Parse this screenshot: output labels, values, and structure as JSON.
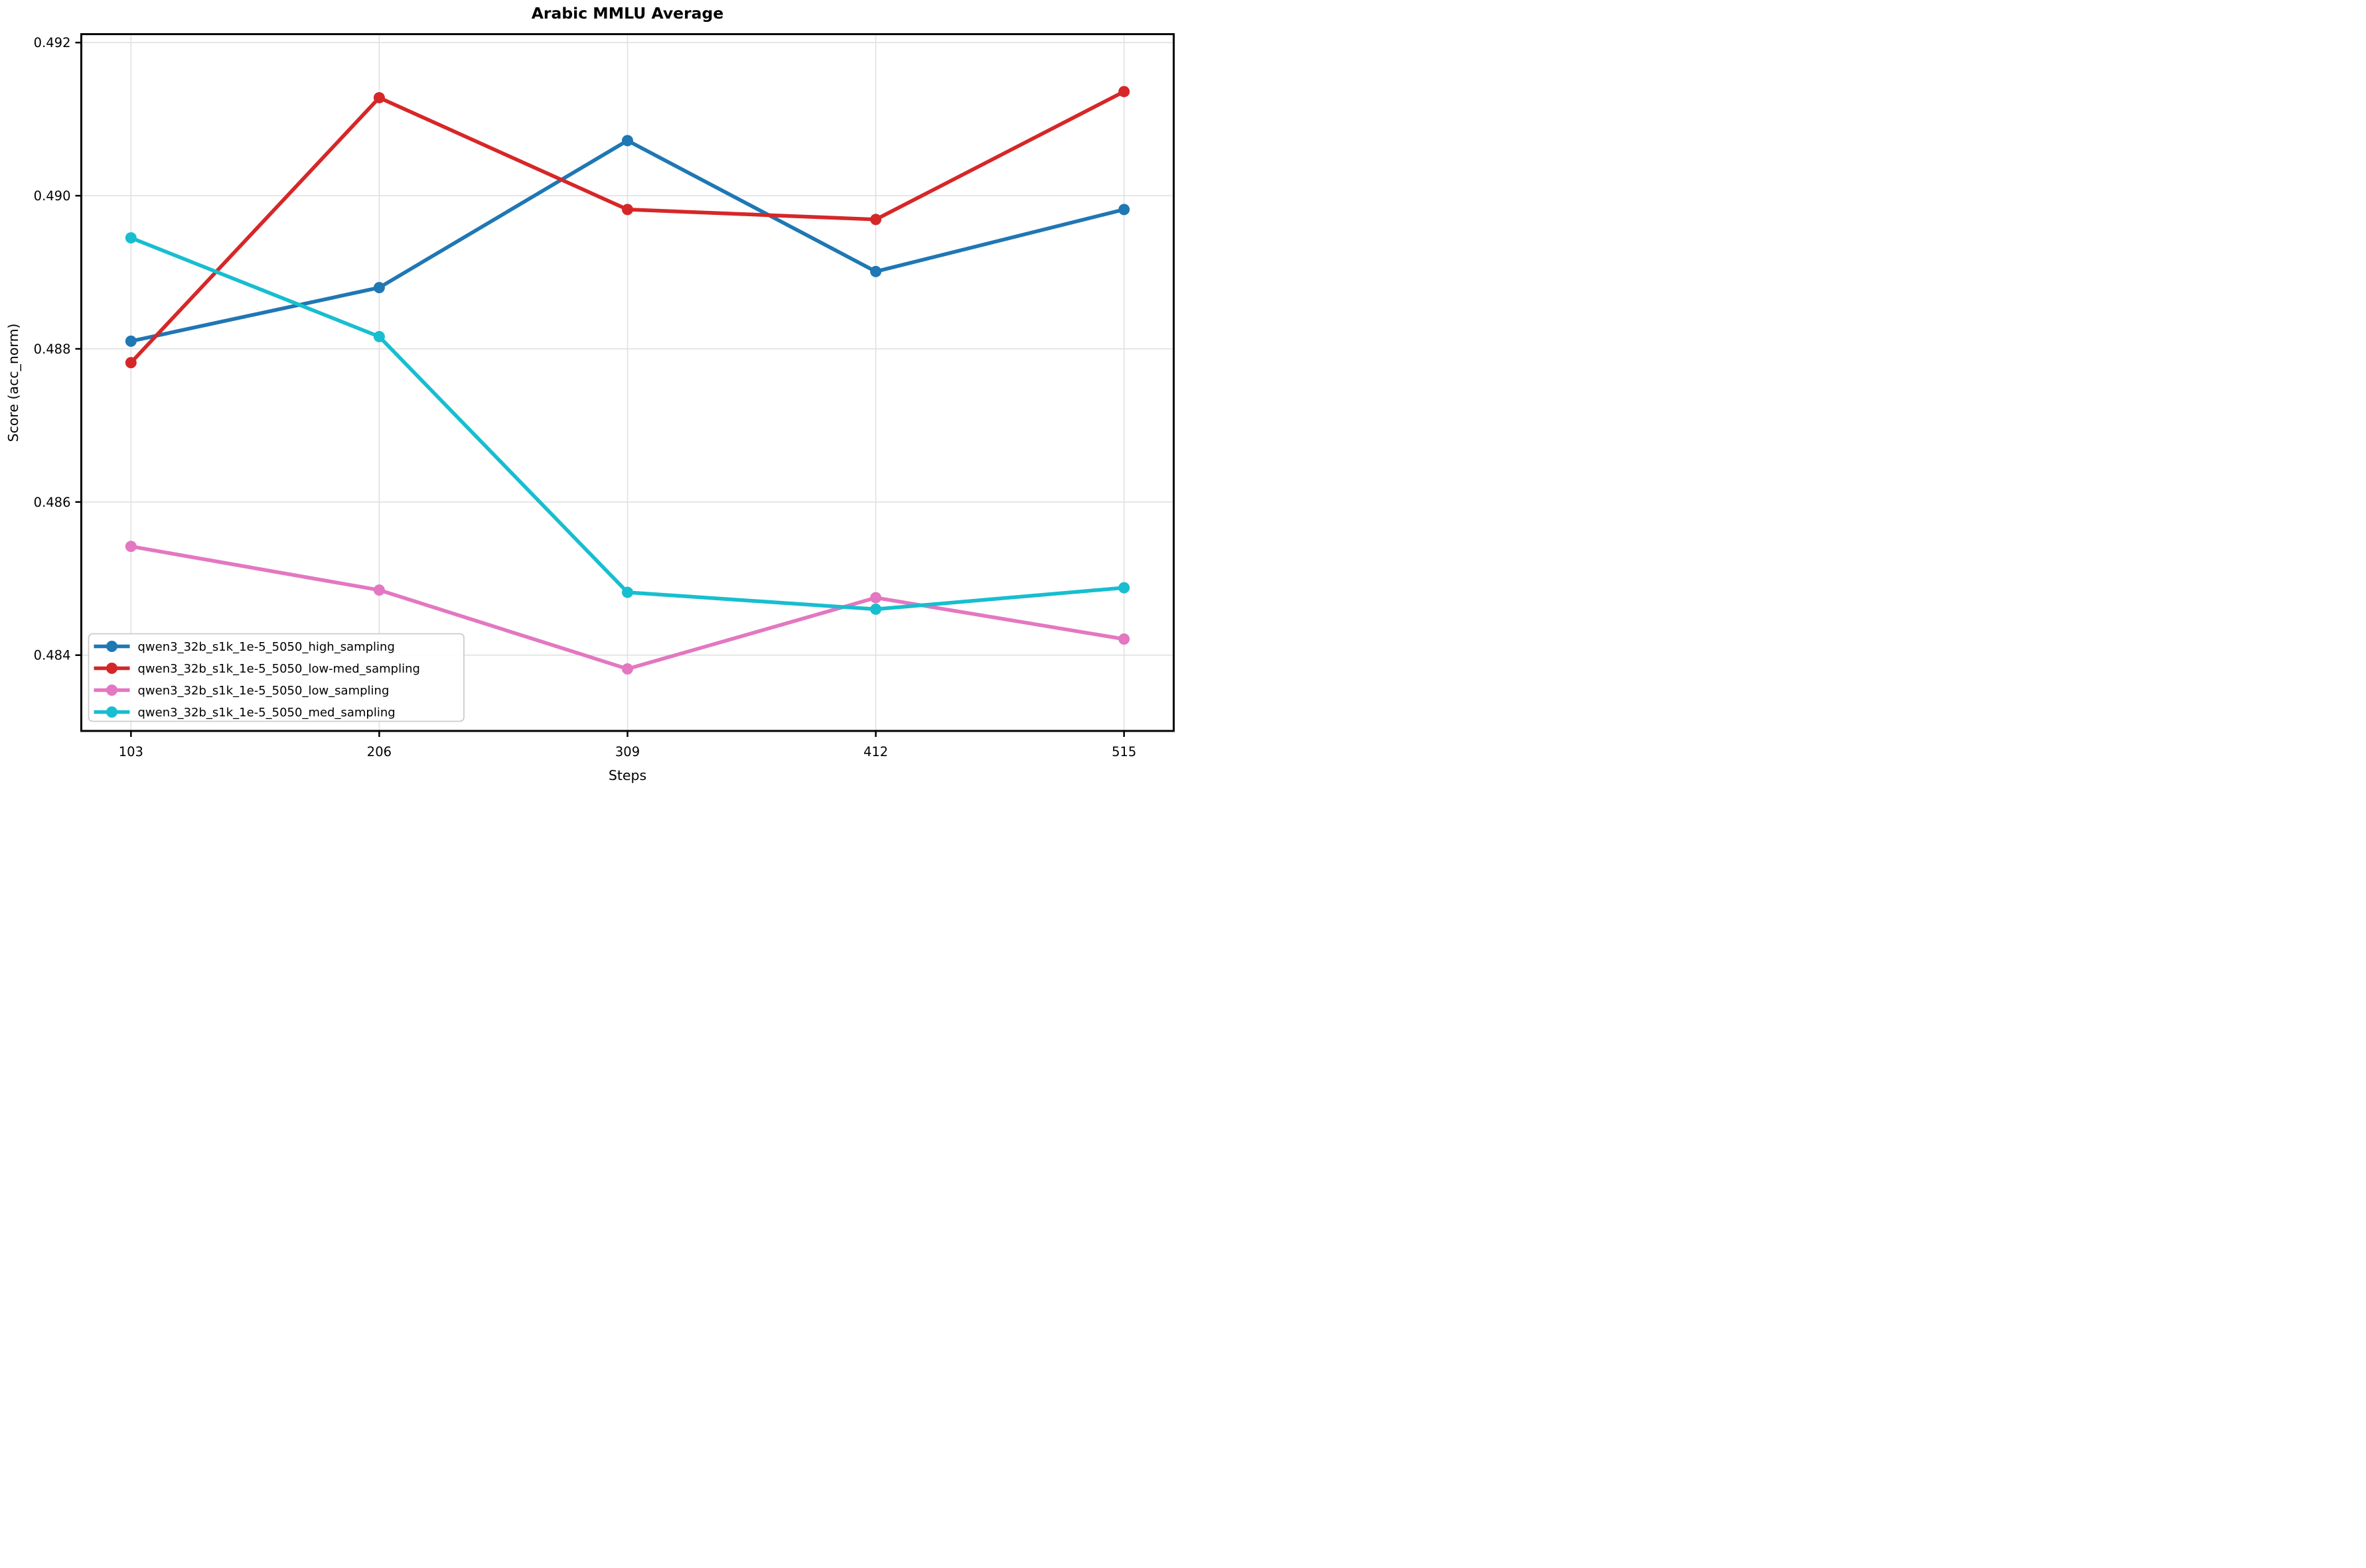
{
  "chart_data": {
    "type": "line",
    "title": "Arabic MMLU Average",
    "xlabel": "Steps",
    "ylabel": "Score (acc_norm)",
    "x": [
      103,
      206,
      309,
      412,
      515
    ],
    "x_tick_labels": [
      "103",
      "206",
      "309",
      "412",
      "515"
    ],
    "y_ticks": [
      0.484,
      0.486,
      0.488,
      0.49,
      0.492
    ],
    "y_tick_labels": [
      "0.484",
      "0.486",
      "0.488",
      "0.490",
      "0.492"
    ],
    "xlim": [
      82.4,
      535.6
    ],
    "ylim": [
      0.48301,
      0.49211
    ],
    "grid": true,
    "legend_position": "lower left",
    "series": [
      {
        "name": "qwen3_32b_s1k_1e-5_5050_high_sampling",
        "color": "#1f77b4",
        "marker": "circle",
        "values": [
          0.4881,
          0.4888,
          0.49072,
          0.48901,
          0.48982
        ]
      },
      {
        "name": "qwen3_32b_s1k_1e-5_5050_low-med_sampling",
        "color": "#d62728",
        "marker": "circle",
        "values": [
          0.48782,
          0.49128,
          0.48982,
          0.48969,
          0.49136
        ]
      },
      {
        "name": "qwen3_32b_s1k_1e-5_5050_low_sampling",
        "color": "#e377c2",
        "marker": "circle",
        "values": [
          0.48542,
          0.48485,
          0.48382,
          0.48475,
          0.48421
        ]
      },
      {
        "name": "qwen3_32b_s1k_1e-5_5050_med_sampling",
        "color": "#17becf",
        "marker": "circle",
        "values": [
          0.48945,
          0.48816,
          0.48482,
          0.4846,
          0.48488
        ]
      }
    ],
    "style": {
      "grid_color": "#e0e0e0",
      "spine_color": "#000000",
      "background": "#ffffff",
      "legend_border_color": "#cccccc"
    }
  }
}
